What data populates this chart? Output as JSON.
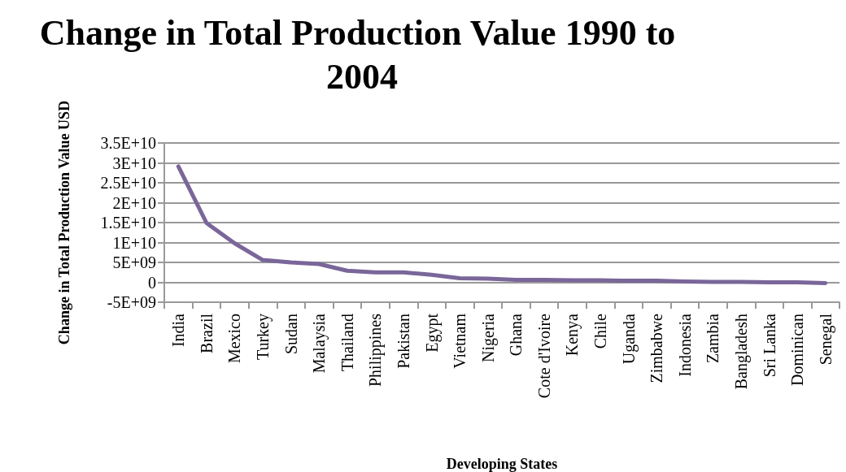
{
  "chart_data": {
    "type": "line",
    "title": "Change in Total Production Value 1990 to 2004",
    "xlabel": "Developing States",
    "ylabel": "Change in Total Production Value USD",
    "categories": [
      "India",
      "Brazil",
      "Mexico",
      "Turkey",
      "Sudan",
      "Malaysia",
      "Thailand",
      "Philippines",
      "Pakistan",
      "Egypt",
      "Vietnam",
      "Nigeria",
      "Ghana",
      "Cote d'Ivoire",
      "Kenya",
      "Chile",
      "Uganda",
      "Zimbabwe",
      "Indonesia",
      "Zambia",
      "Bangladesh",
      "Sri Lanka",
      "Dominican",
      "Senegal"
    ],
    "series": [
      {
        "color": "#7a6699",
        "values": [
          29100000000,
          14900000000,
          9800000000,
          5600000000,
          5000000000,
          4600000000,
          2900000000,
          2500000000,
          2500000000,
          1900000000,
          1000000000,
          900000000,
          600000000,
          600000000,
          500000000,
          500000000,
          400000000,
          400000000,
          200000000,
          100000000,
          100000000,
          0,
          0,
          -200000000
        ]
      }
    ],
    "ylim": [
      -5000000000,
      35000000000
    ],
    "yticks": [
      {
        "value": -5000000000,
        "label": "-5E+09"
      },
      {
        "value": 0,
        "label": "0"
      },
      {
        "value": 5000000000,
        "label": "5E+09"
      },
      {
        "value": 10000000000,
        "label": "1E+10"
      },
      {
        "value": 15000000000,
        "label": "1.5E+10"
      },
      {
        "value": 20000000000,
        "label": "2E+10"
      },
      {
        "value": 25000000000,
        "label": "2.5E+10"
      },
      {
        "value": 30000000000,
        "label": "3E+10"
      },
      {
        "value": 35000000000,
        "label": "3.5E+10"
      }
    ],
    "grid": "y",
    "marker": "none",
    "line_style": "solid"
  }
}
